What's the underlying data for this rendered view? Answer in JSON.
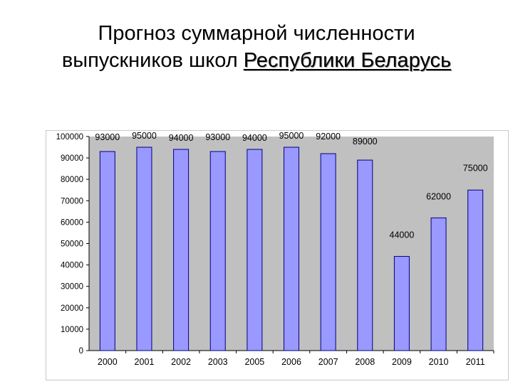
{
  "title": {
    "line1": "Прогноз суммарной численности",
    "line2_prefix": "выпускников школ ",
    "line2_underlined": "Республики Беларусь"
  },
  "chart_data": {
    "type": "bar",
    "categories": [
      "2000",
      "2001",
      "2002",
      "2003",
      "2005",
      "2006",
      "2007",
      "2008",
      "2009",
      "2010",
      "2011"
    ],
    "values": [
      93000,
      95000,
      94000,
      93000,
      94000,
      95000,
      92000,
      89000,
      44000,
      62000,
      75000
    ],
    "data_labels": [
      "93000",
      "95000",
      "94000",
      "93000",
      "94000",
      "95000",
      "92000",
      "89000",
      "44000",
      "62000",
      "75000"
    ],
    "y_ticks": [
      0,
      10000,
      20000,
      30000,
      40000,
      50000,
      60000,
      70000,
      80000,
      90000,
      100000
    ],
    "y_tick_labels": [
      "0",
      "10000",
      "20000",
      "30000",
      "40000",
      "50000",
      "60000",
      "70000",
      "80000",
      "90000",
      "100000"
    ],
    "ylim": [
      0,
      100000
    ],
    "grid": false,
    "legend": "none",
    "colors": {
      "bar_fill": "#9999ff",
      "bar_stroke": "#000080",
      "plot_bg": "#c0c0c0"
    }
  }
}
